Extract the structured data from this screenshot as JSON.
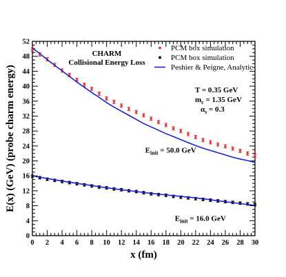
{
  "chart_data": {
    "type": "scatter",
    "xlabel": "x (fm)",
    "ylabel": "E(x) (GeV) (probe charm energy)",
    "xlim": [
      0,
      30
    ],
    "ylim": [
      0,
      52
    ],
    "xticks": [
      0,
      2,
      4,
      6,
      8,
      10,
      12,
      14,
      16,
      18,
      20,
      22,
      24,
      26,
      28,
      30
    ],
    "yticks": [
      0,
      4,
      8,
      12,
      16,
      20,
      24,
      28,
      32,
      36,
      40,
      44,
      48,
      52
    ],
    "title_lines": [
      "CHARM",
      "Collisional Energy Loss"
    ],
    "params": {
      "T": {
        "prefix": "T = 0.35 GeV"
      },
      "mc": {
        "base": "m",
        "sub": "c",
        "rest": " = 1.35 GeV"
      },
      "alpha": {
        "base": "α",
        "sub": "s",
        "rest": " = 0.3"
      }
    },
    "labels": [
      {
        "base": "E",
        "sub": "init",
        "rest": " = 50.0 GeV",
        "at": [
          15.2,
          22.2
        ]
      },
      {
        "base": "E",
        "sub": "init",
        "rest": " = 16.0 GeV",
        "at": [
          19.2,
          4.0
        ]
      }
    ],
    "legend": [
      {
        "name": "PCM box simulation",
        "marker": "circle",
        "color": "#e8262b"
      },
      {
        "name": "PCM box simulation",
        "marker": "square",
        "color": "#000000"
      },
      {
        "name": "Peshier & Peigne, Analytic",
        "marker": "line",
        "color": "#1a1fd6"
      }
    ],
    "series": [
      {
        "name": "PCM box simulation",
        "marker": "circle",
        "color": "#e8262b",
        "x": [
          0,
          1,
          2,
          3,
          4,
          5,
          6,
          7,
          8,
          9,
          10,
          11,
          12,
          13,
          14,
          15,
          16,
          17,
          18,
          19,
          20,
          21,
          22,
          23,
          24,
          25,
          26,
          27,
          28,
          29,
          30
        ],
        "y": [
          49.8,
          48.5,
          47.2,
          45.7,
          44.2,
          43.0,
          41.7,
          40.4,
          39.3,
          38.0,
          36.7,
          35.8,
          34.8,
          33.9,
          33.1,
          32.2,
          31.3,
          30.4,
          29.6,
          28.7,
          28.0,
          27.2,
          26.4,
          25.6,
          25.0,
          24.4,
          23.9,
          23.3,
          22.7,
          22.0,
          21.4
        ],
        "err": 0.45
      },
      {
        "name": "PCM box simulation",
        "marker": "square",
        "color": "#000000",
        "x": [
          0,
          1,
          2,
          3,
          4,
          5,
          6,
          7,
          8,
          9,
          10,
          11,
          12,
          13,
          14,
          15,
          16,
          17,
          18,
          19,
          20,
          21,
          22,
          23,
          24,
          25,
          26,
          27,
          28,
          29,
          30
        ],
        "y": [
          15.9,
          15.5,
          15.1,
          14.8,
          14.5,
          14.2,
          13.9,
          13.6,
          13.3,
          13.0,
          12.8,
          12.5,
          12.3,
          12.0,
          11.8,
          11.5,
          11.2,
          11.0,
          10.8,
          10.5,
          10.3,
          10.1,
          9.9,
          9.7,
          9.5,
          9.3,
          9.1,
          8.9,
          8.7,
          8.5,
          8.3
        ],
        "err": 0.35
      },
      {
        "name": "Peshier & Peigne, Analytic",
        "marker": "line",
        "color": "#1a1fd6",
        "x": [
          0,
          1,
          2,
          3,
          4,
          5,
          6,
          7,
          8,
          9,
          10,
          11,
          12,
          13,
          14,
          15,
          16,
          17,
          18,
          19,
          20,
          21,
          22,
          23,
          24,
          25,
          26,
          27,
          28,
          29,
          30
        ],
        "y": [
          50.2,
          48.7,
          47.1,
          45.6,
          44.1,
          42.6,
          41.1,
          39.7,
          38.3,
          37.0,
          35.6,
          34.4,
          33.3,
          32.2,
          31.1,
          30.0,
          29.1,
          28.2,
          27.3,
          26.5,
          25.7,
          24.9,
          24.1,
          23.4,
          22.8,
          22.2,
          21.6,
          21.0,
          20.5,
          20.1,
          19.6
        ]
      },
      {
        "name": "Peshier & Peigne, Analytic",
        "marker": "line",
        "color": "#1a1fd6",
        "x": [
          0,
          2,
          4,
          6,
          8,
          10,
          12,
          14,
          16,
          18,
          20,
          22,
          24,
          26,
          28,
          30
        ],
        "y": [
          16.0,
          15.3,
          14.6,
          14.0,
          13.4,
          12.8,
          12.3,
          11.8,
          11.3,
          10.9,
          10.5,
          10.1,
          9.6,
          9.1,
          8.6,
          8.1
        ]
      }
    ]
  }
}
